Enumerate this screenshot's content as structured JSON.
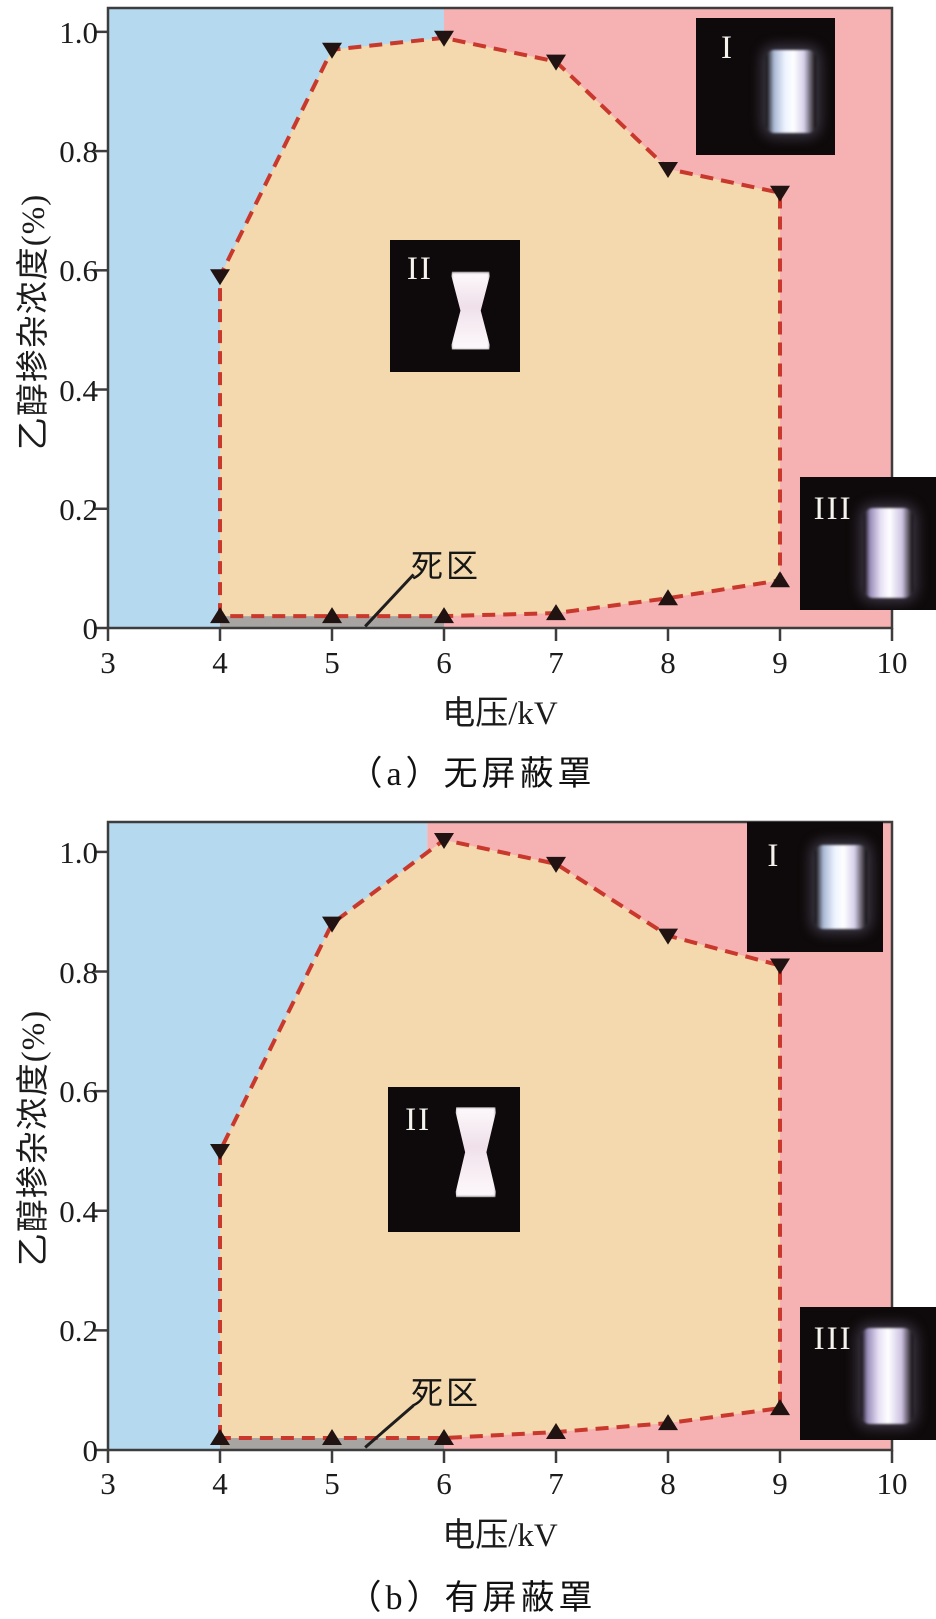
{
  "colors": {
    "region_blue": "#b5daef",
    "region_pink": "#f6b1b2",
    "region_tan": "#f4d9ae",
    "deadzone_gray": "#a7a4a1",
    "boundary_red": "#c9382c",
    "marker_dark": "#201312",
    "axis_dark": "#3d3d3d",
    "inset_black": "#0e0a0b",
    "inset_label_white": "#f5f3ee"
  },
  "chart_data": [
    {
      "type": "area",
      "title": "（a）无屏蔽罩",
      "xlabel": "电压/kV",
      "ylabel": "乙醇掺杂浓度(%)",
      "xlim": [
        3,
        10
      ],
      "ylim": [
        0,
        1.04
      ],
      "x_ticks": [
        "3",
        "4",
        "5",
        "6",
        "7",
        "8",
        "9",
        "10"
      ],
      "x_tick_values": [
        3,
        4,
        5,
        6,
        7,
        8,
        9,
        10
      ],
      "y_ticks": [
        "0",
        "0.2",
        "0.4",
        "0.6",
        "0.8",
        "1.0"
      ],
      "y_tick_values": [
        0,
        0.2,
        0.4,
        0.6,
        0.8,
        1.0
      ],
      "grid": false,
      "legend": "none",
      "region_split_x": 6.0,
      "deadzone": {
        "label": "死区",
        "x_range": [
          4,
          6
        ],
        "y_top": 0.02
      },
      "series": [
        {
          "name": "upper-boundary",
          "marker": "triangle-down",
          "points": [
            [
              4,
              0.59
            ],
            [
              5,
              0.97
            ],
            [
              6,
              0.99
            ],
            [
              7,
              0.95
            ],
            [
              8,
              0.77
            ],
            [
              9,
              0.73
            ]
          ]
        },
        {
          "name": "lower-boundary",
          "marker": "triangle-up",
          "points": [
            [
              4,
              0.02
            ],
            [
              5,
              0.02
            ],
            [
              6,
              0.02
            ],
            [
              7,
              0.025
            ],
            [
              8,
              0.05
            ],
            [
              9,
              0.08
            ]
          ]
        }
      ],
      "insets": [
        {
          "label": "I"
        },
        {
          "label": "II"
        },
        {
          "label": "III"
        }
      ]
    },
    {
      "type": "area",
      "title": "（b）有屏蔽罩",
      "xlabel": "电压/kV",
      "ylabel": "乙醇掺杂浓度(%)",
      "xlim": [
        3,
        10
      ],
      "ylim": [
        0,
        1.05
      ],
      "x_ticks": [
        "3",
        "4",
        "5",
        "6",
        "7",
        "8",
        "9",
        "10"
      ],
      "x_tick_values": [
        3,
        4,
        5,
        6,
        7,
        8,
        9,
        10
      ],
      "y_ticks": [
        "0",
        "0.2",
        "0.4",
        "0.6",
        "0.8",
        "1.0"
      ],
      "y_tick_values": [
        0,
        0.2,
        0.4,
        0.6,
        0.8,
        1.0
      ],
      "grid": false,
      "legend": "none",
      "region_split_x": 5.85,
      "deadzone": {
        "label": "死区",
        "x_range": [
          4,
          6
        ],
        "y_top": 0.02
      },
      "series": [
        {
          "name": "upper-boundary",
          "marker": "triangle-down",
          "points": [
            [
              4,
              0.5
            ],
            [
              5,
              0.88
            ],
            [
              6,
              1.02
            ],
            [
              7,
              0.98
            ],
            [
              8,
              0.86
            ],
            [
              9,
              0.81
            ]
          ]
        },
        {
          "name": "lower-boundary",
          "marker": "triangle-up",
          "points": [
            [
              4,
              0.02
            ],
            [
              5,
              0.02
            ],
            [
              6,
              0.02
            ],
            [
              7,
              0.03
            ],
            [
              8,
              0.045
            ],
            [
              9,
              0.07
            ]
          ]
        }
      ],
      "insets": [
        {
          "label": "I"
        },
        {
          "label": "II"
        },
        {
          "label": "III"
        }
      ]
    }
  ]
}
